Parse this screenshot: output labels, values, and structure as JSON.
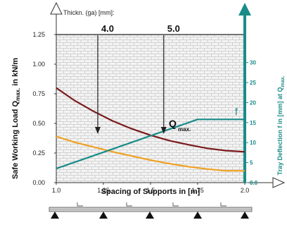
{
  "chart_data": {
    "type": "line",
    "title": "",
    "xlabel": "Spacing of Supports in [m]",
    "ylabel_main": "Safe Working Load Q",
    "ylabel_sub": "max.",
    "ylabel_unit": " in kN/m",
    "ylabel_top": "Thickn. (ga) [mm]:",
    "y2label_main": "Tray Deflection f in [mm] at Q",
    "y2label_sub": "max.",
    "xlim": [
      1.0,
      2.0
    ],
    "ylim": [
      0,
      1.25
    ],
    "y2lim": [
      0,
      37
    ],
    "x_ticks": [
      "1.0",
      "1.25",
      "1.5",
      "1.75",
      "2.0"
    ],
    "y_ticks": [
      "0.00",
      "0.25",
      "0.50",
      "0.75",
      "1.00",
      "1.25"
    ],
    "y2_ticks": [
      "0.0",
      "5",
      "10",
      "15",
      "20",
      "25",
      "30"
    ],
    "grid": true,
    "thickness_marks": [
      {
        "label": "4.0",
        "x": 1.22
      },
      {
        "label": "5.0",
        "x": 1.57
      }
    ],
    "curve_labels": [
      {
        "text": "Q",
        "sub": "max."
      },
      {
        "text": "f"
      }
    ],
    "series": [
      {
        "color": "#7a1a1a",
        "axis": "left",
        "x": [
          1.0,
          1.1,
          1.2,
          1.3,
          1.4,
          1.5,
          1.6,
          1.7,
          1.8,
          1.9,
          2.0
        ],
        "values": [
          0.8,
          0.69,
          0.6,
          0.52,
          0.455,
          0.4,
          0.355,
          0.32,
          0.29,
          0.27,
          0.26
        ]
      },
      {
        "color": "#f0a020",
        "axis": "left",
        "x": [
          1.0,
          1.1,
          1.2,
          1.3,
          1.4,
          1.5,
          1.6,
          1.7,
          1.8,
          1.9,
          2.0
        ],
        "values": [
          0.39,
          0.34,
          0.3,
          0.26,
          0.225,
          0.19,
          0.16,
          0.135,
          0.115,
          0.1,
          0.1
        ]
      },
      {
        "color": "#1a8c88",
        "axis": "right",
        "x": [
          1.0,
          1.75,
          2.0
        ],
        "values": [
          3.5,
          15.8,
          15.8
        ]
      }
    ]
  }
}
